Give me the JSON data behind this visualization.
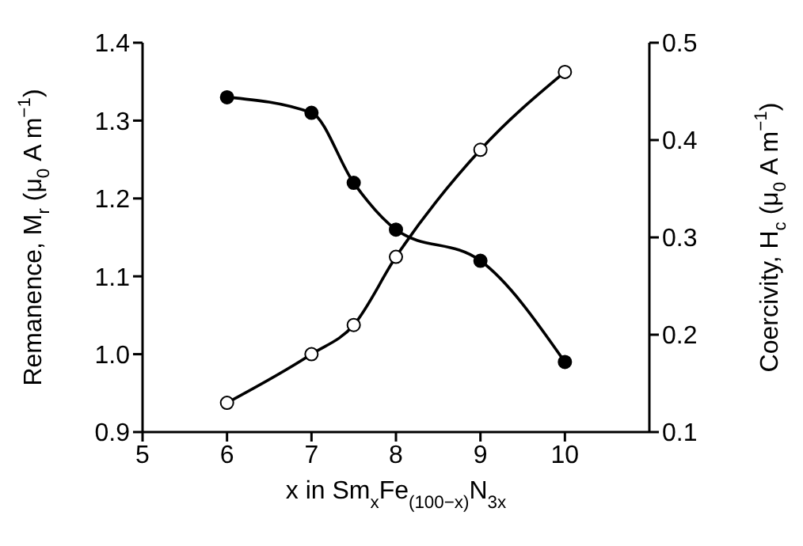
{
  "chart_data": {
    "type": "line",
    "xlabel": "x in Sm$_{x}$Fe$_{(100−x)}$N$_{3x}$",
    "ylabel": "Remanence, M$_{r}$ (μ$_{0}$ A m$^{−1}$)",
    "y2label": "Coercivity, H$_{c}$ (μ$_{0}$ A m$^{−1}$)",
    "x": [
      6,
      7,
      7.5,
      8,
      9,
      10
    ],
    "series": [
      {
        "color": "#000000",
        "values": [
          1.33,
          1.31,
          1.22,
          1.16,
          1.12,
          0.99
        ]
      },
      {
        "color": "#000000",
        "axis": "y2",
        "values": [
          0.13,
          0.18,
          0.21,
          0.28,
          0.39,
          0.47
        ]
      }
    ],
    "xlim": [
      5,
      11
    ],
    "xticks": [
      5,
      6,
      7,
      8,
      9,
      10
    ],
    "ylim": [
      0.9,
      1.4
    ],
    "yticks": [
      0.9,
      {
        "value": 1,
        "label": "1.0"
      },
      1.1,
      1.2,
      1.3,
      1.4
    ],
    "y2lim": [
      0.1,
      0.5
    ],
    "y2ticks": [
      0.1,
      0.2,
      0.3,
      0.4,
      0.5
    ],
    "marker": "circle",
    "line_style": "solid",
    "grid": false,
    "legend": false
  }
}
